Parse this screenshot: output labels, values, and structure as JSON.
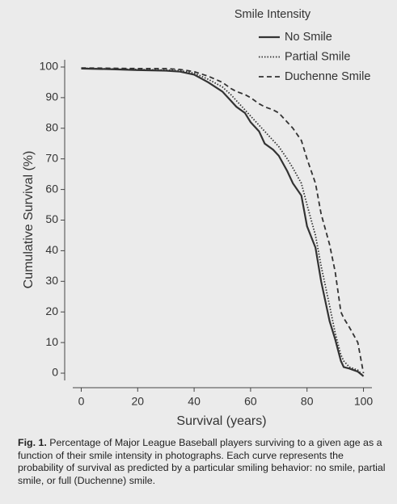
{
  "chart_data": {
    "type": "line",
    "legend_title": "Smile Intensity",
    "xlabel": "Survival (years)",
    "ylabel": "Cumulative Survival (%)",
    "x": [
      0,
      10,
      20,
      30,
      35,
      40,
      45,
      50,
      53,
      55,
      58,
      60,
      63,
      65,
      68,
      70,
      73,
      75,
      78,
      80,
      83,
      85,
      88,
      90,
      92,
      93,
      95,
      98,
      100
    ],
    "series": [
      {
        "name": "No Smile",
        "color": "#333333",
        "line_style": "solid",
        "values": [
          99.5,
          99.3,
          99,
          98.8,
          98.5,
          97.5,
          95,
          92,
          89,
          87,
          85,
          82,
          79,
          75,
          73,
          71,
          66,
          62,
          58,
          48,
          41,
          30,
          17,
          11,
          4,
          2,
          1.5,
          0.5,
          -1
        ]
      },
      {
        "name": "Partial Smile",
        "color": "#333333",
        "line_style": "dotted",
        "values": [
          99.6,
          99.4,
          99.2,
          99,
          98.8,
          98,
          96,
          93.5,
          91,
          89,
          86,
          84,
          81,
          79,
          76,
          74,
          70,
          67,
          62,
          55,
          45,
          35,
          22,
          13,
          6,
          4,
          2,
          1,
          -1
        ]
      },
      {
        "name": "Duchenne Smile",
        "color": "#333333",
        "line_style": "dashed",
        "values": [
          99.7,
          99.6,
          99.5,
          99.5,
          99.2,
          98.5,
          97,
          95,
          93,
          92,
          91,
          90,
          88,
          87,
          86,
          85,
          82,
          80,
          76,
          70,
          62,
          52,
          42,
          33,
          20,
          18,
          15,
          10,
          0
        ]
      }
    ],
    "xlim": [
      -3,
      103
    ],
    "ylim": [
      -2,
      102
    ],
    "xticks": [
      0,
      20,
      40,
      60,
      80,
      100
    ],
    "yticks": [
      0,
      10,
      20,
      30,
      40,
      50,
      60,
      70,
      80,
      90,
      100
    ],
    "legend_position": "upper right"
  },
  "figure_caption": {
    "label": "Fig. 1.",
    "text": "Percentage of Major League Baseball players surviving to a given age as a function of their smile intensity in photographs. Each curve represents the probability of survival as predicted by a particular smiling behavior: no smile, partial smile, or full (Duchenne) smile."
  }
}
